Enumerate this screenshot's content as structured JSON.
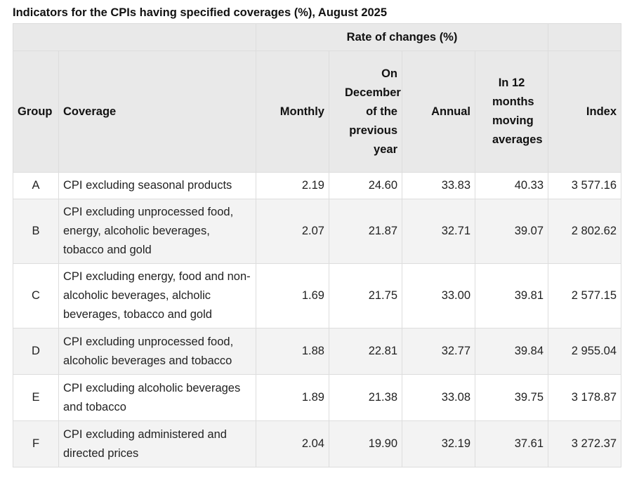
{
  "title": "Indicators for the CPIs having specified coverages (%), August 2025",
  "header": {
    "rate_group": "Rate of changes (%)",
    "group": "Group",
    "coverage": "Coverage",
    "monthly": "Monthly",
    "on_december": "On December of the previous year",
    "annual": "Annual",
    "moving": "In 12 months moving averages",
    "index": "Index"
  },
  "rows": [
    {
      "group": "A",
      "coverage": "CPI excluding seasonal products",
      "monthly": "2.19",
      "december": "24.60",
      "annual": "33.83",
      "moving": "40.33",
      "index": "3 577.16"
    },
    {
      "group": "B",
      "coverage": "CPI excluding unprocessed food, energy, alcoholic beverages, tobacco and gold",
      "monthly": "2.07",
      "december": "21.87",
      "annual": "32.71",
      "moving": "39.07",
      "index": "2 802.62"
    },
    {
      "group": "C",
      "coverage": "CPI excluding energy, food and non-alcoholic beverages, alcholic beverages, tobacco and gold",
      "monthly": "1.69",
      "december": "21.75",
      "annual": "33.00",
      "moving": "39.81",
      "index": "2 577.15"
    },
    {
      "group": "D",
      "coverage": "CPI excluding unprocessed food, alcoholic beverages and tobacco",
      "monthly": "1.88",
      "december": "22.81",
      "annual": "32.77",
      "moving": "39.84",
      "index": "2 955.04"
    },
    {
      "group": "E",
      "coverage": "CPI excluding alcoholic beverages and tobacco",
      "monthly": "1.89",
      "december": "21.38",
      "annual": "33.08",
      "moving": "39.75",
      "index": "3 178.87"
    },
    {
      "group": "F",
      "coverage": "CPI excluding administered and directed prices",
      "monthly": "2.04",
      "december": "19.90",
      "annual": "32.19",
      "moving": "37.61",
      "index": "3 272.37"
    }
  ]
}
